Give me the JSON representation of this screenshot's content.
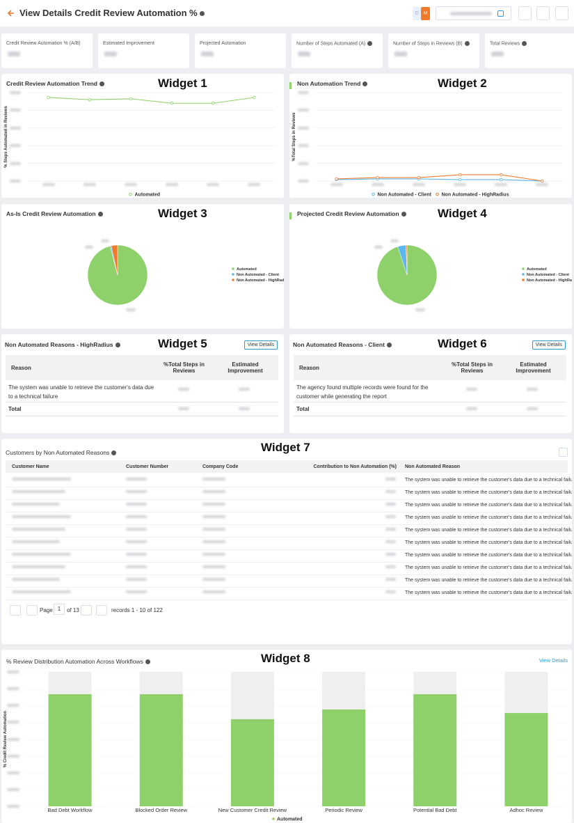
{
  "header": {
    "title": "View Details Credit Review Automation %",
    "toggle": [
      "D",
      "M"
    ]
  },
  "kpis": [
    "Credit Review Automation % (A/B)",
    "Estimated Improvement",
    "Projected Automation",
    "Number of Steps Automated (A)",
    "Number of Steps in Reviews (B)",
    "Total Reviews"
  ],
  "widget_tags": [
    "Widget 1",
    "Widget 2",
    "Widget 3",
    "Widget 4",
    "Widget 5",
    "Widget 6",
    "Widget 7",
    "Widget 8"
  ],
  "chart_data": [
    {
      "type": "line",
      "title": "Credit Review Automation Trend",
      "y_label": "% Steps Automated in Reviews",
      "categories": [
        null,
        null,
        null,
        null,
        null,
        null
      ],
      "ylim": [
        0,
        100
      ],
      "yticks": [
        0,
        20,
        40,
        60,
        80,
        100
      ],
      "series": [
        {
          "name": "Automated",
          "color": "#8ed16a",
          "values": [
            94.5,
            92,
            93,
            88,
            88,
            94.5
          ]
        }
      ]
    },
    {
      "type": "line",
      "title": "Non Automation Trend",
      "y_label": "%Total Steps in Reviews",
      "categories": [
        null,
        null,
        null,
        null,
        null,
        null
      ],
      "ylim": [
        0,
        100
      ],
      "yticks": [
        0,
        20,
        40,
        60,
        80,
        100
      ],
      "series": [
        {
          "name": "Non Automated - Client",
          "color": "#5bb8ee",
          "values": [
            1.6,
            2.4,
            2.4,
            1.6,
            1.6,
            0
          ]
        },
        {
          "name": "Non Automated - HighRadius",
          "color": "#f07a2a",
          "values": [
            2.4,
            3.9,
            3.9,
            7.1,
            7.1,
            0
          ]
        }
      ]
    },
    {
      "type": "pie",
      "title": "As-Is Credit Review Automation",
      "categories": [
        "Automated",
        "Non Automated - Client",
        "Non Automated - HighRadius"
      ],
      "values": [
        96,
        0.6,
        3.4
      ],
      "colors": [
        "#8ed16a",
        "#5bb8ee",
        "#f07a2a"
      ]
    },
    {
      "type": "pie",
      "title": "Projected Credit Review Automation",
      "categories": [
        "Automated",
        "Non Automated - Client",
        "Non Automated - HighRadius"
      ],
      "values": [
        95,
        4.5,
        0.5
      ],
      "colors": [
        "#8ed16a",
        "#5bb8ee",
        "#f07a2a"
      ]
    },
    {
      "type": "bar",
      "title": "% Review Distribution Automation Across Workflows",
      "y_label": "% Credit Review Automation",
      "link": "View Details",
      "categories": [
        "Bad Debt Workflow",
        "Blocked Order Review",
        "New Customer Credit Review",
        "Periodic Review",
        "Potential Bad Debt",
        "Adhoc Review"
      ],
      "ylim": [
        0,
        100
      ],
      "yticks": [
        0,
        12.5,
        25,
        37.5,
        50,
        62.5,
        75,
        87.5,
        100
      ],
      "series": [
        {
          "name": "Automated",
          "color": "#8ed16a",
          "values": [
            83.4,
            83.4,
            64.8,
            72,
            83.4,
            69.4
          ]
        }
      ]
    }
  ],
  "reasons_highradius": {
    "title": "Non Automated Reasons - HighRadius",
    "link": "View Details",
    "columns": [
      "Reason",
      "%Total Steps in Reviews",
      "Estimated Improvement"
    ],
    "rows": [
      "The system was unable to retrieve the customer's data due to a technical failure"
    ],
    "total": "Total"
  },
  "reasons_client": {
    "title": "Non Automated Reasons - Client",
    "link": "View Details",
    "columns": [
      "Reason",
      "%Total Steps in Reviews",
      "Estimated Improvement"
    ],
    "rows": [
      "The agency found multiple records were found for the customer while generating the report"
    ],
    "total": "Total"
  },
  "customers": {
    "title": "Customers by Non Automated Reasons",
    "columns": [
      "Customer Name",
      "Customer Number",
      "Company Code",
      "Contribution to Non Automation (%)",
      "Non Automated Reason"
    ],
    "reasons": [
      "The system was unable to retrieve the customer's data due to a technical failure",
      "The system was unable to retrieve the customer's data due to a technical failure",
      "The system was unable to retrieve the customer's data due to a technical failure",
      "The system was unable to retrieve the customer's data due to a technical failure",
      "The system was unable to retrieve the customer's data due to a technical failure",
      "The system was unable to retrieve the customer's data due to a technical failure",
      "The system was unable to retrieve the customer's data due to a technical failure",
      "The system was unable to retrieve the customer's data due to a technical failure",
      "The system was unable to retrieve the customer's data due to a technical failure",
      "The system was unable to retrieve the customer's data due to a technical failure"
    ],
    "pagination": {
      "page_label": "Page",
      "page": 1,
      "of": "of 13",
      "records": "records 1 - 10 of 122"
    }
  }
}
